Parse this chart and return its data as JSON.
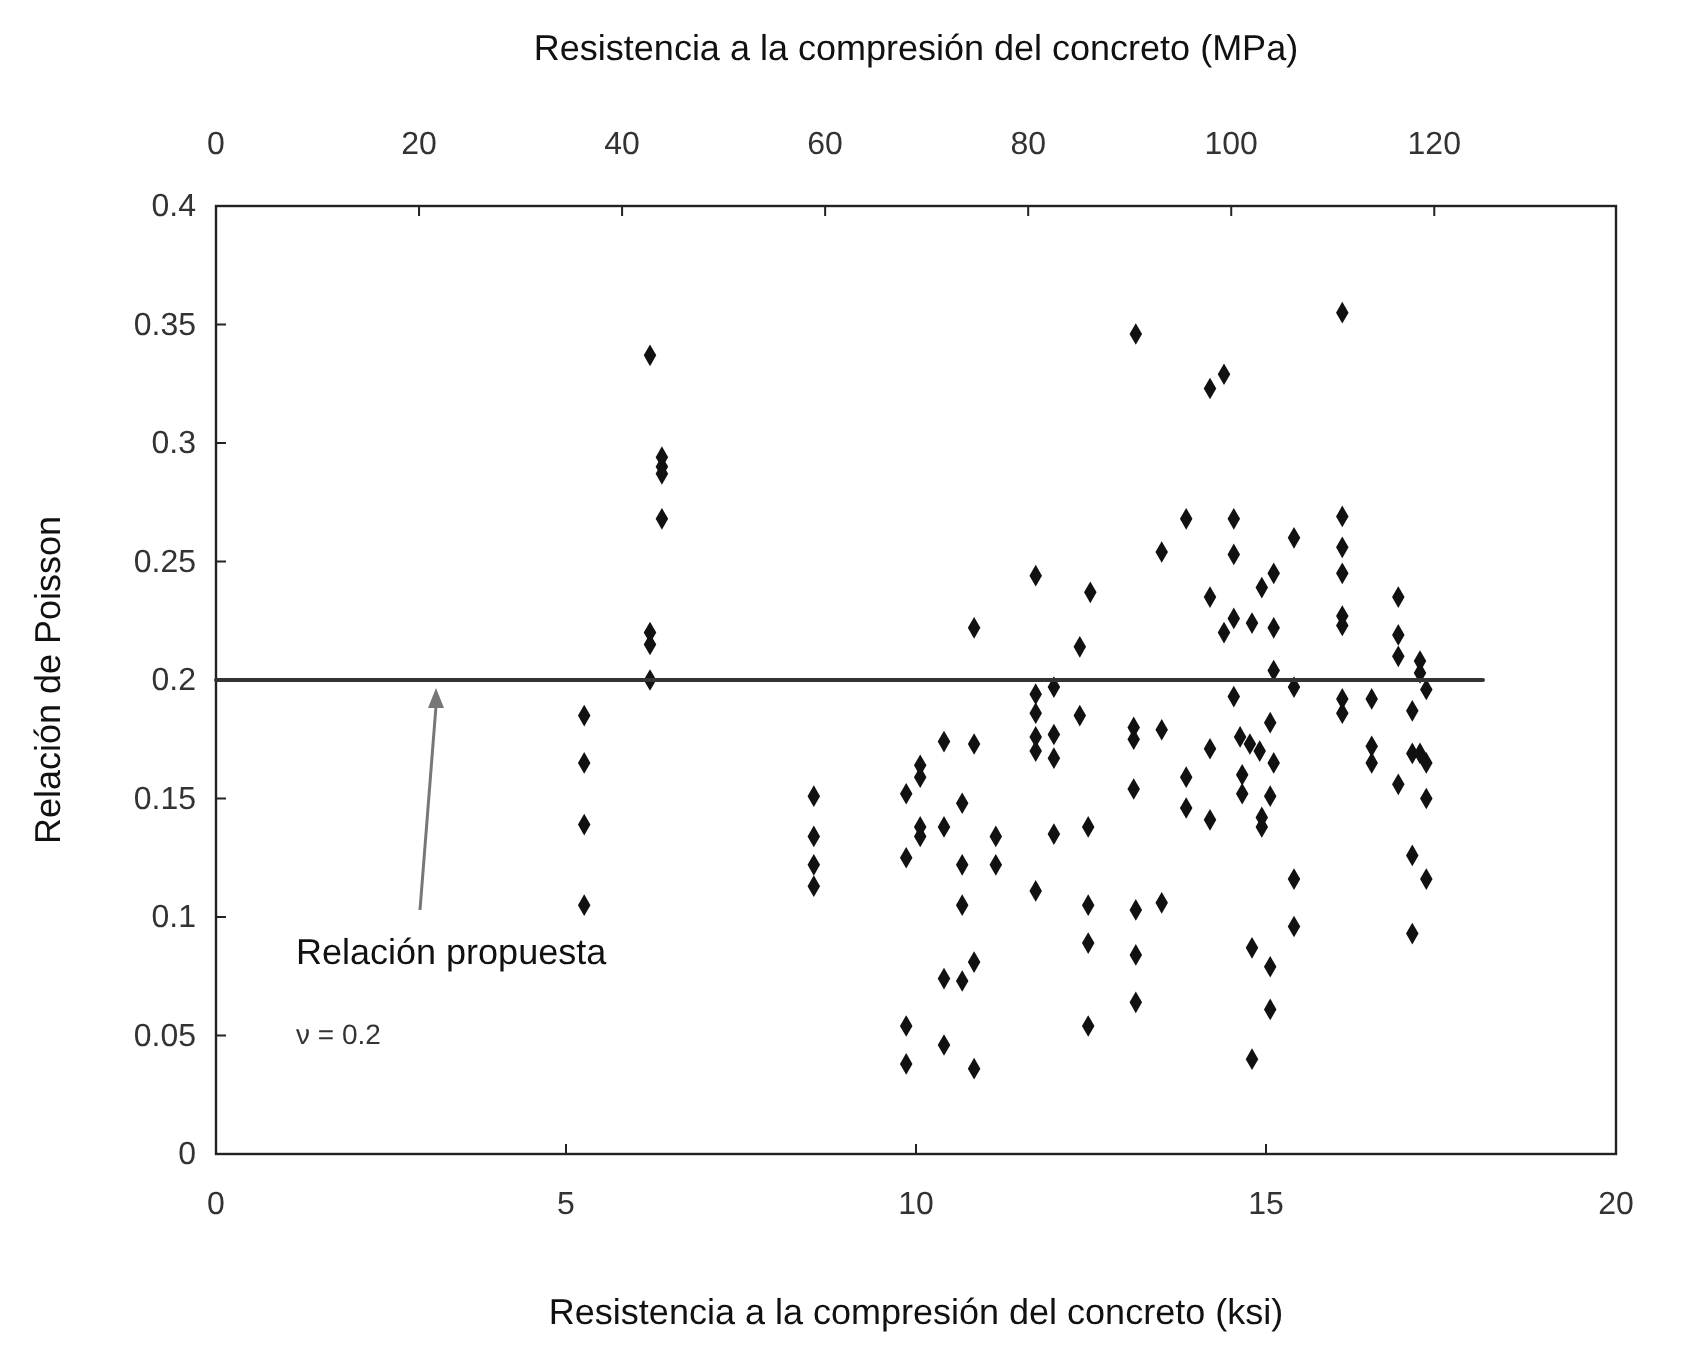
{
  "chart_data": {
    "type": "scatter",
    "xlabel": "Resistencia a la compresión del concreto (ksi)",
    "x2label": "Resistencia a la compresión del concreto (MPa)",
    "ylabel": "Relación de Poisson",
    "xlim": [
      0,
      20
    ],
    "xticks": [
      0,
      5,
      10,
      15,
      20
    ],
    "x2lim": [
      0,
      137.9
    ],
    "x2ticks": [
      0,
      20,
      40,
      60,
      80,
      100,
      120
    ],
    "ylim": [
      0,
      0.4
    ],
    "yticks": [
      0,
      0.05,
      0.1,
      0.15,
      0.2,
      0.25,
      0.3,
      0.35,
      0.4
    ],
    "grid": false,
    "annotations": [
      "Relación propuesta",
      "ν = 0.2"
    ],
    "series": [
      {
        "marker": "diamond",
        "color": "#111111",
        "x": [
          5.26,
          5.26,
          5.26,
          5.26,
          6.2,
          6.37,
          6.37,
          6.37,
          6.37,
          6.2,
          6.2,
          6.2,
          8.54,
          8.54,
          8.54,
          8.54,
          9.86,
          9.86,
          9.86,
          9.86,
          10.06,
          10.06,
          10.06,
          10.06,
          13.14,
          14.2,
          13.86,
          13.51,
          11.71,
          12.49,
          10.83,
          12.34,
          14.2,
          11.71,
          11.97,
          11.71,
          12.34,
          10.4,
          10.83,
          11.71,
          11.71,
          11.97,
          11.97,
          13.11,
          13.11,
          13.51,
          14.2,
          10.66,
          10.4,
          11.14,
          11.97,
          12.46,
          13.11,
          13.86,
          13.86,
          14.2,
          10.66,
          11.14,
          11.71,
          10.66,
          12.46,
          13.14,
          13.51,
          12.46,
          13.14,
          10.83,
          10.4,
          10.66,
          13.14,
          12.46,
          10.4,
          10.83,
          16.09,
          14.4,
          14.54,
          16.09,
          14.54,
          16.09,
          15.4,
          16.09,
          15.11,
          14.94,
          16.89,
          16.09,
          16.09,
          14.54,
          14.4,
          14.8,
          15.11,
          16.89,
          16.89,
          17.2,
          15.11,
          17.2,
          15.4,
          17.29,
          14.54,
          16.09,
          16.51,
          16.09,
          17.09,
          15.06,
          14.63,
          14.77,
          14.91,
          15.11,
          16.51,
          16.51,
          17.09,
          17.2,
          17.29,
          14.66,
          14.66,
          15.06,
          14.94,
          14.94,
          16.89,
          17.29,
          17.09,
          17.29,
          15.4,
          15.4,
          17.09,
          14.8,
          15.06,
          15.06,
          14.8
        ],
        "values": [
          0.185,
          0.165,
          0.139,
          0.105,
          0.337,
          0.294,
          0.29,
          0.287,
          0.268,
          0.22,
          0.215,
          0.2,
          0.151,
          0.134,
          0.122,
          0.113,
          0.152,
          0.125,
          0.054,
          0.038,
          0.164,
          0.159,
          0.138,
          0.134,
          0.346,
          0.323,
          0.268,
          0.254,
          0.244,
          0.237,
          0.222,
          0.214,
          0.235,
          0.194,
          0.197,
          0.186,
          0.185,
          0.174,
          0.173,
          0.176,
          0.17,
          0.177,
          0.167,
          0.18,
          0.175,
          0.179,
          0.171,
          0.148,
          0.138,
          0.134,
          0.135,
          0.138,
          0.154,
          0.159,
          0.146,
          0.141,
          0.122,
          0.122,
          0.111,
          0.105,
          0.105,
          0.103,
          0.106,
          0.089,
          0.084,
          0.081,
          0.074,
          0.073,
          0.064,
          0.054,
          0.046,
          0.036,
          0.355,
          0.329,
          0.268,
          0.269,
          0.253,
          0.256,
          0.26,
          0.245,
          0.245,
          0.239,
          0.235,
          0.227,
          0.223,
          0.226,
          0.22,
          0.224,
          0.222,
          0.219,
          0.21,
          0.208,
          0.204,
          0.203,
          0.197,
          0.196,
          0.193,
          0.192,
          0.192,
          0.186,
          0.187,
          0.182,
          0.176,
          0.173,
          0.17,
          0.165,
          0.172,
          0.165,
          0.169,
          0.169,
          0.165,
          0.16,
          0.152,
          0.151,
          0.142,
          0.138,
          0.156,
          0.15,
          0.126,
          0.116,
          0.116,
          0.096,
          0.093,
          0.087,
          0.079,
          0.061,
          0.04
        ]
      },
      {
        "type": "line",
        "marker": "none",
        "color": "#333333",
        "x": [
          0,
          18.1
        ],
        "values": [
          0.2,
          0.2
        ]
      }
    ]
  }
}
